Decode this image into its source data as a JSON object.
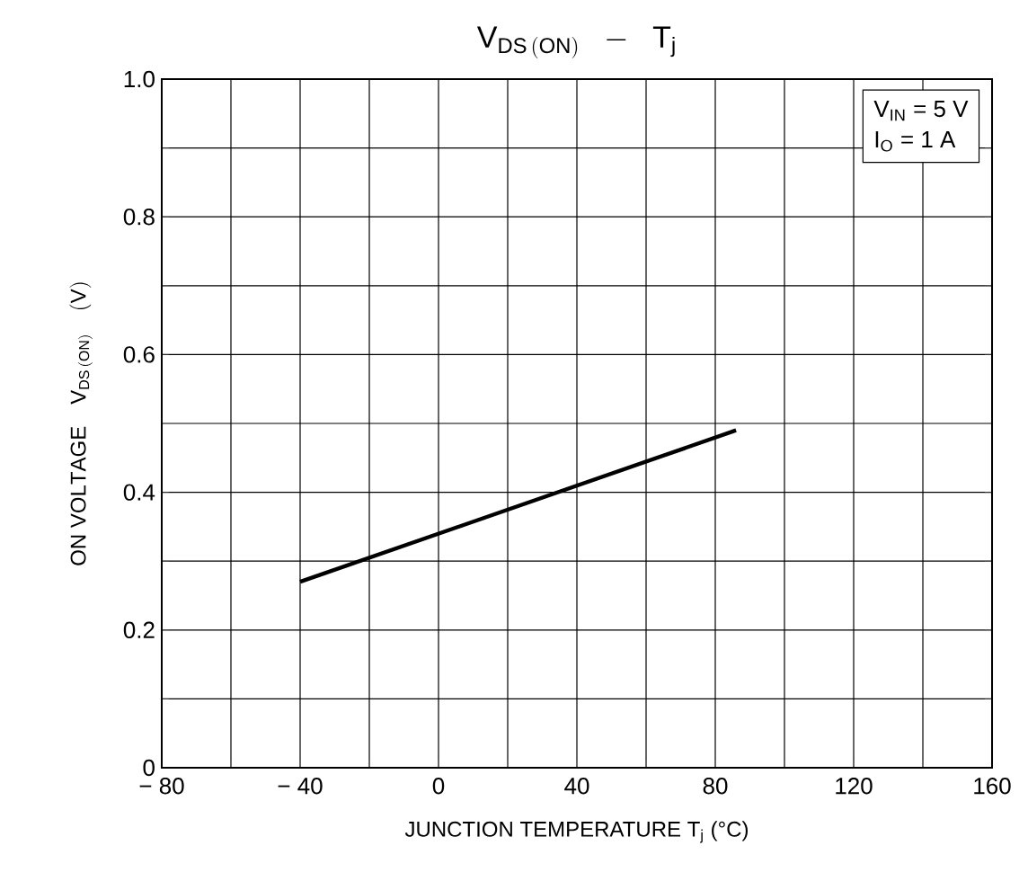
{
  "chart_data": {
    "type": "line",
    "title": "\\mathrm{V_{DS\\,(ON)}\\;\\;-\\;\\;T_{j}}",
    "xlabel": "JUNCTION TEMPERATURE    T$_{j}$    (°C)",
    "ylabel": "\\mathrm{ON\\ VOLTAGE\\quad V_{DS\\,(ON)}\\quad (V)}",
    "annotations": [
      "V$_{IN}$ = 5 V",
      "I$_{O}$ = 1 A"
    ],
    "series": [
      {
        "color": "#000000",
        "x": [
          -40,
          86
        ],
        "values": [
          0.27,
          0.49
        ]
      }
    ],
    "xlim": [
      -80,
      160
    ],
    "ylim": [
      0,
      1.0
    ],
    "xticks": [
      {
        "value": -80,
        "label": "− 80"
      },
      {
        "value": -60,
        "label": null
      },
      {
        "value": -40,
        "label": "− 40"
      },
      {
        "value": -20,
        "label": null
      },
      0,
      {
        "value": 20,
        "label": null
      },
      40,
      {
        "value": 60,
        "label": null
      },
      80,
      {
        "value": 100,
        "label": null
      },
      120,
      {
        "value": 140,
        "label": null
      },
      160
    ],
    "yticks": [
      0,
      {
        "value": 0.1,
        "label": null
      },
      0.2,
      {
        "value": 0.3,
        "label": null
      },
      0.4,
      {
        "value": 0.5,
        "label": null
      },
      0.6,
      {
        "value": 0.7,
        "label": null
      },
      0.8,
      {
        "value": 0.9,
        "label": null
      },
      {
        "value": 1.0,
        "label": "1.0"
      }
    ],
    "grid": true,
    "line_style": "solid"
  }
}
